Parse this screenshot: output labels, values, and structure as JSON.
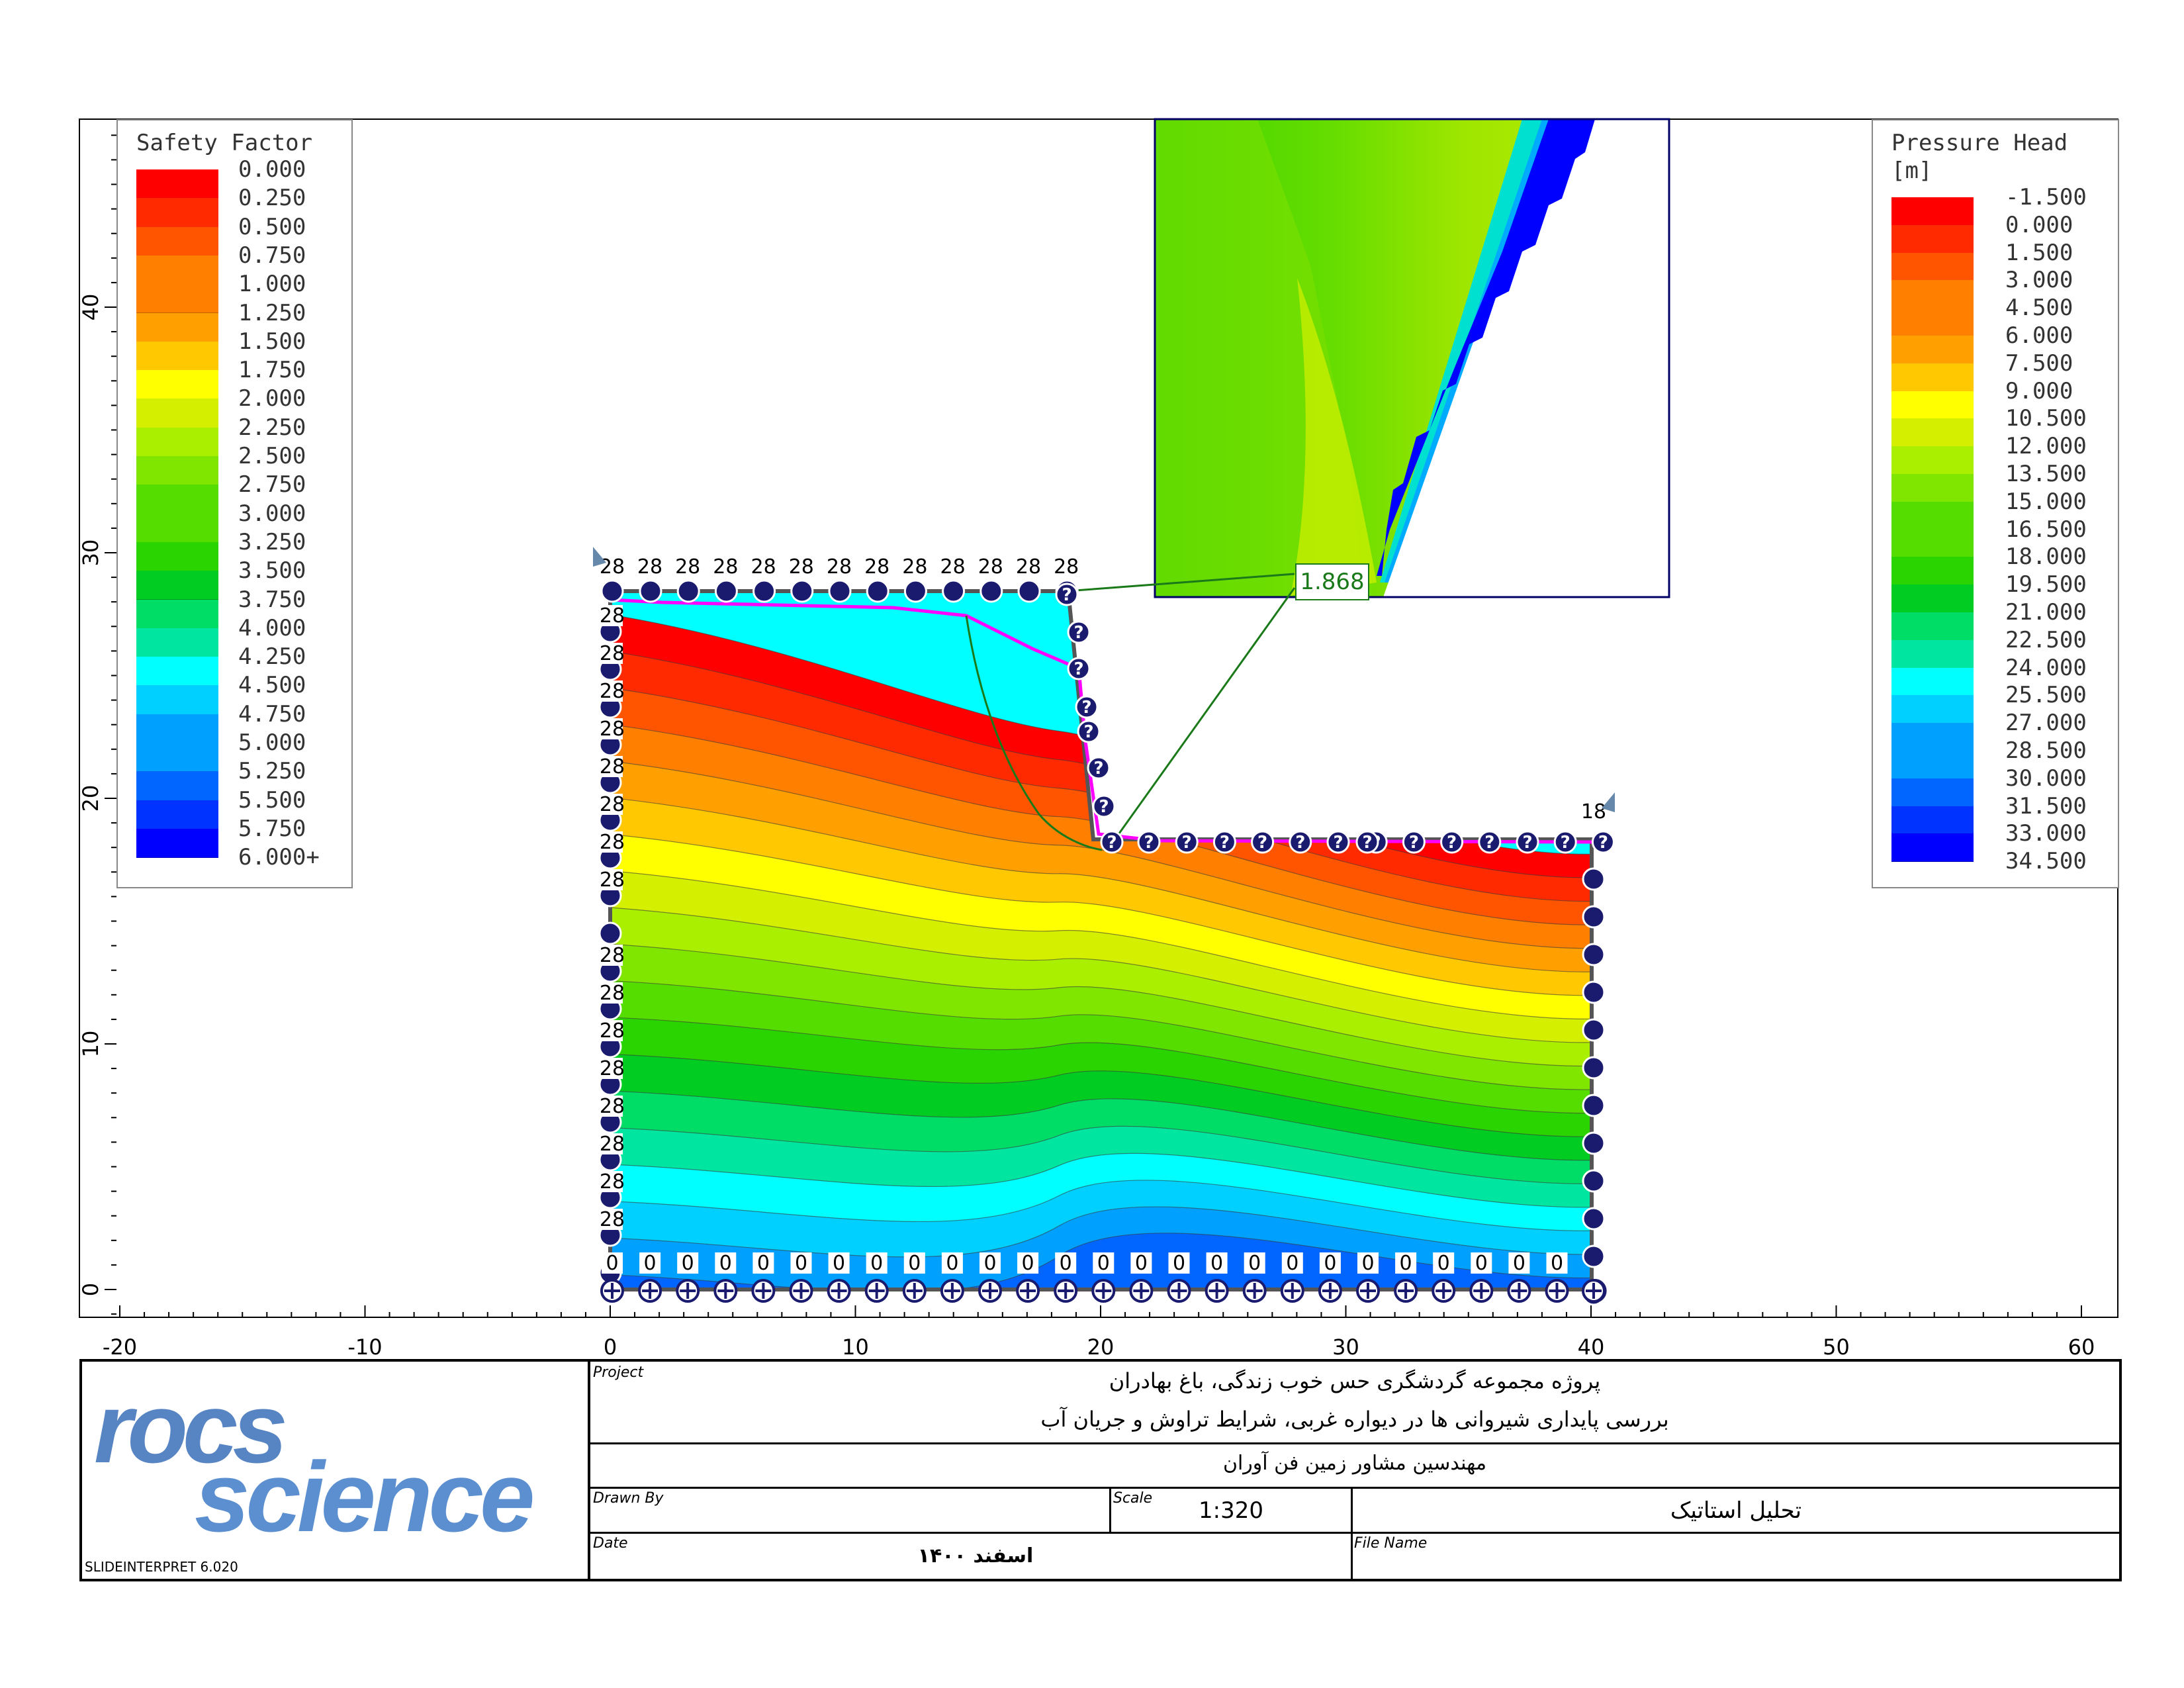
{
  "colors": {
    "ramp": [
      "#ff0000",
      "#ff2a00",
      "#ff5500",
      "#ff8000",
      "#ffa000",
      "#ffc800",
      "#ffff00",
      "#d4f000",
      "#aaee00",
      "#80e600",
      "#55dd00",
      "#2ad400",
      "#00cc22",
      "#00dd66",
      "#00e6a0",
      "#00ffff",
      "#00d0ff",
      "#00a0ff",
      "#0066ff",
      "#0033ff",
      "#0000ff"
    ],
    "nodes": "#1a1a6e",
    "slip_surface": "#1a7a1a",
    "water_table": "#ff00ff",
    "frame": "#000000"
  },
  "plot": {
    "x_ticks": [
      "-20",
      "-10",
      "0",
      "10",
      "20",
      "30",
      "40",
      "50",
      "60"
    ],
    "y_ticks": [
      "0",
      "10",
      "20",
      "30",
      "40"
    ]
  },
  "legend_left": {
    "title": "Safety Factor",
    "values": [
      "0.000",
      "0.250",
      "0.500",
      "0.750",
      "1.000",
      "1.250",
      "1.500",
      "1.750",
      "2.000",
      "2.250",
      "2.500",
      "2.750",
      "3.000",
      "3.250",
      "3.500",
      "3.750",
      "4.000",
      "4.250",
      "4.500",
      "4.750",
      "5.000",
      "5.250",
      "5.500",
      "5.750",
      "6.000+"
    ]
  },
  "legend_right": {
    "title": "Pressure Head",
    "unit": "[m]",
    "values": [
      "-1.500",
      "0.000",
      "1.500",
      "3.000",
      "4.500",
      "6.000",
      "7.500",
      "9.000",
      "10.500",
      "12.000",
      "13.500",
      "15.000",
      "16.500",
      "18.000",
      "19.500",
      "21.000",
      "22.500",
      "24.000",
      "25.500",
      "27.000",
      "28.500",
      "30.000",
      "31.500",
      "33.000",
      "34.500"
    ]
  },
  "model": {
    "safety_factor_label": "1.868",
    "head_top_label": "28",
    "head_right_label": "18",
    "head_bottom_label": "0",
    "unknown_label": "?"
  },
  "title_block": {
    "logo_text": "science",
    "logo_prefix": "rocs",
    "software": "SLIDEINTERPRET 6.020",
    "project_label": "Project",
    "project_line1": "پروژه مجموعه گردشگری حس خوب زندگی، باغ بهادران",
    "project_line2": "بررسی پایداری شیروانی ها در دیواره غربی، شرایط تراوش و جریان آب",
    "company": "مهندسین مشاور زمین فن آوران",
    "drawn_by_label": "Drawn By",
    "scale_label": "Scale",
    "scale_value": "1:320",
    "analysis": "تحلیل استاتیک",
    "date_label": "Date",
    "date_value": "اسفند ۱۴۰۰",
    "file_name_label": "File Name"
  }
}
